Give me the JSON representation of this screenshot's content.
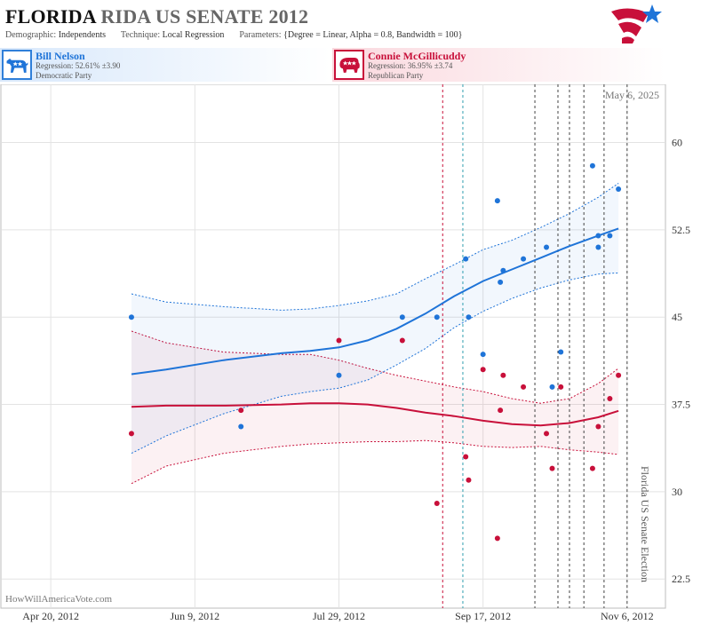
{
  "header": {
    "title_main": "FLORIDA",
    "title_rest": " RIDA US SENATE 2012",
    "demographic_label": "Demographic:",
    "demographic": "Independents",
    "technique_label": "Technique:",
    "technique": "Local Regression",
    "parameters_label": "Parameters:",
    "parameters": "{Degree = Linear, Alpha = 0.8, Bandwidth = 100}"
  },
  "candidates": {
    "dem": {
      "name": "Bill Nelson",
      "regression": "Regression: 52.61% ±3.90",
      "party": "Democratic Party",
      "icon": "donkey-icon"
    },
    "rep": {
      "name": "Connie McGillicuddy",
      "regression": "Regression: 36.95% ±3.74",
      "party": "Republican Party",
      "icon": "elephant-icon"
    }
  },
  "watermark": "HowWillAmericaVote.com",
  "date_label": "May 6, 2025",
  "election_label": "Florida US Senate Election",
  "colors": {
    "dem": "#1f74d8",
    "rep": "#c8103a",
    "grid": "#e3e3e3"
  },
  "chart_data": {
    "type": "scatter",
    "x_ticks": [
      "Apr 20, 2012",
      "Jun 9, 2012",
      "Jul 29, 2012",
      "Sep 17, 2012",
      "Nov 6, 2012"
    ],
    "x_tick_days": [
      0,
      50,
      100,
      150,
      200
    ],
    "y_ticks": [
      "22.5",
      "30",
      "37.5",
      "45",
      "52.5",
      "60"
    ],
    "ylim": [
      20,
      65
    ],
    "xlim_days": [
      -17,
      213
    ],
    "grid": true,
    "series": [
      {
        "name": "Bill Nelson",
        "color": "#1f74d8",
        "points": [
          [
            28,
            45
          ],
          [
            66,
            35.6
          ],
          [
            100,
            40
          ],
          [
            122,
            45
          ],
          [
            134,
            45
          ],
          [
            144,
            50
          ],
          [
            145,
            45
          ],
          [
            150,
            41.8
          ],
          [
            155,
            55
          ],
          [
            156,
            48
          ],
          [
            157,
            49
          ],
          [
            164,
            50
          ],
          [
            172,
            51
          ],
          [
            174,
            39
          ],
          [
            177,
            42
          ],
          [
            188,
            58
          ],
          [
            190,
            51
          ],
          [
            190,
            52
          ],
          [
            194,
            52
          ],
          [
            197,
            56
          ]
        ],
        "trend": [
          [
            28,
            40.1
          ],
          [
            40,
            40.5
          ],
          [
            60,
            41.3
          ],
          [
            80,
            41.9
          ],
          [
            90,
            42.1
          ],
          [
            100,
            42.4
          ],
          [
            110,
            43
          ],
          [
            120,
            44
          ],
          [
            130,
            45.3
          ],
          [
            140,
            46.8
          ],
          [
            150,
            48.1
          ],
          [
            160,
            49.1
          ],
          [
            170,
            50.1
          ],
          [
            180,
            51.1
          ],
          [
            190,
            52
          ],
          [
            197,
            52.61
          ]
        ],
        "band_upper": [
          [
            28,
            47
          ],
          [
            40,
            46.3
          ],
          [
            60,
            45.9
          ],
          [
            80,
            45.6
          ],
          [
            90,
            45.7
          ],
          [
            100,
            46
          ],
          [
            110,
            46.4
          ],
          [
            120,
            47
          ],
          [
            130,
            48.3
          ],
          [
            140,
            49.5
          ],
          [
            150,
            50.8
          ],
          [
            160,
            51.6
          ],
          [
            170,
            52.7
          ],
          [
            180,
            53.9
          ],
          [
            190,
            55.3
          ],
          [
            197,
            56.5
          ]
        ],
        "band_lower": [
          [
            28,
            33.3
          ],
          [
            40,
            34.8
          ],
          [
            60,
            36.7
          ],
          [
            80,
            38.2
          ],
          [
            90,
            38.6
          ],
          [
            100,
            38.9
          ],
          [
            110,
            39.6
          ],
          [
            120,
            40.9
          ],
          [
            130,
            42.3
          ],
          [
            140,
            44.1
          ],
          [
            150,
            45.5
          ],
          [
            160,
            46.6
          ],
          [
            170,
            47.5
          ],
          [
            180,
            48.2
          ],
          [
            190,
            48.7
          ],
          [
            197,
            48.8
          ]
        ]
      },
      {
        "name": "Connie McGillicuddy",
        "color": "#c8103a",
        "points": [
          [
            28,
            35
          ],
          [
            66,
            37
          ],
          [
            100,
            43
          ],
          [
            122,
            43
          ],
          [
            134,
            29
          ],
          [
            144,
            33
          ],
          [
            145,
            31
          ],
          [
            150,
            40.5
          ],
          [
            155,
            26
          ],
          [
            156,
            37
          ],
          [
            157,
            40
          ],
          [
            164,
            39
          ],
          [
            172,
            35
          ],
          [
            174,
            32
          ],
          [
            177,
            39
          ],
          [
            188,
            32
          ],
          [
            190,
            35.6
          ],
          [
            194,
            38
          ],
          [
            197,
            40
          ]
        ],
        "trend": [
          [
            28,
            37.3
          ],
          [
            40,
            37.4
          ],
          [
            60,
            37.4
          ],
          [
            80,
            37.5
          ],
          [
            90,
            37.6
          ],
          [
            100,
            37.6
          ],
          [
            110,
            37.5
          ],
          [
            120,
            37.2
          ],
          [
            130,
            36.8
          ],
          [
            140,
            36.5
          ],
          [
            150,
            36.1
          ],
          [
            160,
            35.8
          ],
          [
            170,
            35.7
          ],
          [
            180,
            35.9
          ],
          [
            190,
            36.4
          ],
          [
            197,
            36.95
          ]
        ],
        "band_upper": [
          [
            28,
            43.8
          ],
          [
            40,
            42.8
          ],
          [
            60,
            42
          ],
          [
            80,
            41.8
          ],
          [
            90,
            41.8
          ],
          [
            100,
            41.3
          ],
          [
            110,
            40.6
          ],
          [
            120,
            40
          ],
          [
            130,
            39.5
          ],
          [
            140,
            39
          ],
          [
            150,
            38.6
          ],
          [
            160,
            38
          ],
          [
            170,
            37.6
          ],
          [
            180,
            38
          ],
          [
            190,
            39.3
          ],
          [
            197,
            40.6
          ]
        ],
        "band_lower": [
          [
            28,
            30.7
          ],
          [
            40,
            32.2
          ],
          [
            60,
            33.3
          ],
          [
            80,
            33.9
          ],
          [
            90,
            34.1
          ],
          [
            100,
            34.2
          ],
          [
            110,
            34.3
          ],
          [
            120,
            34.3
          ],
          [
            130,
            34.4
          ],
          [
            140,
            34.2
          ],
          [
            150,
            33.9
          ],
          [
            160,
            33.8
          ],
          [
            170,
            33.9
          ],
          [
            180,
            33.6
          ],
          [
            190,
            33.4
          ],
          [
            197,
            33.2
          ]
        ]
      }
    ],
    "event_lines": [
      {
        "day": 136,
        "color": "#c8103a"
      },
      {
        "day": 143,
        "color": "#2f9fb0"
      },
      {
        "day": 168,
        "color": "#444444"
      },
      {
        "day": 176,
        "color": "#444444"
      },
      {
        "day": 180,
        "color": "#444444"
      },
      {
        "day": 185,
        "color": "#444444"
      },
      {
        "day": 192,
        "color": "#444444"
      },
      {
        "day": 200,
        "color": "#444444"
      }
    ]
  }
}
